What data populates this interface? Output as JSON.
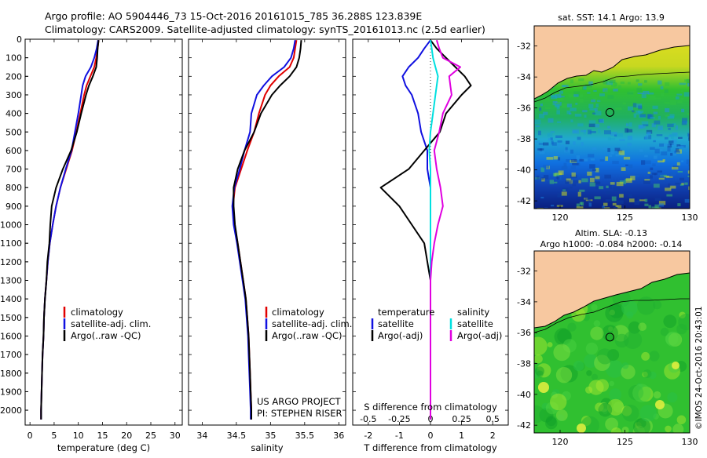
{
  "header": {
    "line1": "Argo profile: AO 5904446_73 15-Oct-2016 20161015_785 36.288S 123.839E",
    "line2": "Climatology: CARS2009. Satellite-adjusted climatology: synTS_20161013.nc (2.5d earlier)"
  },
  "colors": {
    "climatology": "#e00000",
    "satellite": "#1010e0",
    "argo": "#000000",
    "salinity_satellite": "#00e0e0",
    "salinity_argo": "#e000e0",
    "land": "#f7c8a0"
  },
  "chart_data": [
    {
      "type": "line",
      "name": "temperature-profile",
      "xlabel": "temperature (deg C)",
      "ylabel": "",
      "xlim": [
        -1,
        31.5
      ],
      "ylim": [
        2080,
        0
      ],
      "xticks": [
        "0",
        "5",
        "10",
        "15",
        "20",
        "25",
        "30"
      ],
      "yticks": [
        "0",
        "100",
        "200",
        "300",
        "400",
        "500",
        "600",
        "700",
        "800",
        "900",
        "1000",
        "1100",
        "1200",
        "1300",
        "1400",
        "1500",
        "1600",
        "1700",
        "1800",
        "1900",
        "2000"
      ],
      "depth": [
        5,
        50,
        100,
        150,
        200,
        250,
        300,
        400,
        500,
        600,
        700,
        800,
        900,
        1000,
        1100,
        1200,
        1300,
        1400,
        1500,
        1600,
        1700,
        1800,
        1900,
        2000,
        2050
      ],
      "series": [
        {
          "name": "climatology",
          "values": [
            14.2,
            14.0,
            13.7,
            13.3,
            12.5,
            11.7,
            11.2,
            10.4,
            9.6,
            8.7,
            7.5,
            6.3,
            5.4,
            4.7,
            4.1,
            3.7,
            3.4,
            3.1,
            2.9,
            2.8,
            2.6,
            2.5,
            2.4,
            2.3,
            2.3
          ]
        },
        {
          "name": "satellite-adj. clim.",
          "values": [
            14.1,
            13.8,
            13.3,
            12.6,
            11.5,
            10.9,
            10.6,
            10.0,
            9.3,
            8.6,
            7.4,
            6.3,
            5.4,
            4.7,
            4.1,
            3.7,
            3.4,
            3.1,
            2.9,
            2.8,
            2.6,
            2.5,
            2.4,
            2.3,
            2.3
          ]
        },
        {
          "name": "Argo(..raw -QC)",
          "values": [
            14.2,
            14.0,
            13.9,
            13.7,
            13.0,
            12.2,
            11.6,
            10.6,
            9.7,
            8.5,
            6.8,
            5.4,
            4.5,
            4.2,
            4.0,
            3.6,
            3.4,
            3.1,
            2.9,
            2.8,
            2.6,
            2.5,
            2.4,
            2.3,
            2.3
          ]
        }
      ],
      "legend": [
        "climatology",
        "satellite-adj. clim.",
        "Argo(..raw -QC)"
      ]
    },
    {
      "type": "line",
      "name": "salinity-profile",
      "xlabel": "salinity",
      "xlim": [
        33.8,
        36.1
      ],
      "ylim": [
        2080,
        0
      ],
      "xticks": [
        "34",
        "34.5",
        "35",
        "35.5",
        "36"
      ],
      "depth": [
        5,
        50,
        100,
        150,
        200,
        250,
        300,
        400,
        500,
        600,
        700,
        800,
        900,
        1000,
        1100,
        1200,
        1300,
        1400,
        1500,
        1600,
        1700,
        1800,
        1900,
        2000,
        2050
      ],
      "series": [
        {
          "name": "climatology",
          "values": [
            35.38,
            35.36,
            35.34,
            35.28,
            35.12,
            35.0,
            34.92,
            34.83,
            34.76,
            34.66,
            34.57,
            34.48,
            34.45,
            34.47,
            34.52,
            34.56,
            34.6,
            34.64,
            34.66,
            34.68,
            34.69,
            34.7,
            34.71,
            34.72,
            34.72
          ]
        },
        {
          "name": "satellite-adj. clim.",
          "values": [
            35.36,
            35.34,
            35.3,
            35.2,
            35.02,
            34.9,
            34.8,
            34.72,
            34.7,
            34.62,
            34.55,
            34.47,
            34.44,
            34.46,
            34.51,
            34.55,
            34.59,
            34.63,
            34.65,
            34.67,
            34.68,
            34.69,
            34.7,
            34.71,
            34.71
          ]
        },
        {
          "name": "Argo(..raw -QC)",
          "values": [
            35.45,
            35.44,
            35.42,
            35.38,
            35.28,
            35.14,
            35.02,
            34.86,
            34.76,
            34.62,
            34.52,
            34.46,
            34.46,
            34.48,
            34.52,
            34.56,
            34.6,
            34.64,
            34.66,
            34.68,
            34.69,
            34.7,
            34.71,
            34.72,
            34.72
          ]
        }
      ],
      "legend": [
        "climatology",
        "satellite-adj. clim.",
        "Argo(..raw -QC)"
      ],
      "annotation": [
        "US ARGO PROJECT",
        "PI: STEPHEN RISER"
      ]
    },
    {
      "type": "line",
      "name": "difference-profile",
      "xlabel": "T difference from climatology",
      "xlabel_top": "S difference from climatology",
      "xlim": [
        -2.5,
        2.5
      ],
      "ylim": [
        2080,
        0
      ],
      "xticks": [
        "-2",
        "-1",
        "0",
        "1",
        "2"
      ],
      "sticks": [
        "-0.5",
        "-0.25",
        "0",
        "0.25",
        "0.5"
      ],
      "depth": [
        5,
        50,
        100,
        150,
        200,
        250,
        300,
        400,
        500,
        600,
        700,
        800,
        900,
        1000,
        1100,
        1200,
        1300,
        1400,
        1500,
        1600,
        1700,
        1800,
        1900,
        2000,
        2050
      ],
      "series": [
        {
          "name": "temperature satellite",
          "values": [
            0.0,
            -0.2,
            -0.4,
            -0.7,
            -0.9,
            -0.8,
            -0.6,
            -0.4,
            -0.3,
            -0.1,
            -0.1,
            0.0,
            0.0,
            0.0,
            0.0,
            0.0,
            0.0,
            0.0,
            0.0,
            0.0,
            0.0,
            0.0,
            0.0,
            0.0,
            0.0
          ]
        },
        {
          "name": "temperature Argo(-adj)",
          "values": [
            0.0,
            0.2,
            0.5,
            0.8,
            1.1,
            1.3,
            1.0,
            0.5,
            0.3,
            -0.2,
            -0.7,
            -1.6,
            -1.0,
            -0.6,
            -0.2,
            -0.1,
            0.0,
            0.0,
            0.0,
            0.0,
            0.0,
            0.0,
            0.0,
            0.0,
            0.0
          ]
        },
        {
          "name": "salinity satellite",
          "values": [
            0.0,
            0.01,
            0.02,
            0.04,
            0.06,
            0.05,
            0.04,
            0.02,
            0.0,
            -0.01,
            0.0,
            0.0,
            0.0,
            0.0,
            0.0,
            0.0,
            0.0,
            0.0,
            0.0,
            0.0,
            0.0,
            0.0,
            0.0,
            0.0,
            0.0
          ]
        },
        {
          "name": "salinity Argo(-adj)",
          "values": [
            0.05,
            0.07,
            0.1,
            0.24,
            0.15,
            0.16,
            0.17,
            0.1,
            0.07,
            0.03,
            0.05,
            0.08,
            0.1,
            0.06,
            0.03,
            0.01,
            0.0,
            0.0,
            0.0,
            0.0,
            0.0,
            0.0,
            0.0,
            0.0,
            0.0
          ]
        }
      ],
      "legend": {
        "temperature_title": "temperature",
        "salinity_title": "salinity",
        "entries": [
          "satellite",
          "Argo(-adj)",
          "satellite",
          "Argo(-adj)"
        ]
      }
    },
    {
      "type": "heatmap",
      "name": "sst-map",
      "title": "sat. SST: 14.1  Argo: 13.9",
      "xlim": [
        118,
        130
      ],
      "ylim": [
        -42.5,
        -30.7
      ],
      "xticks": [
        "120",
        "125",
        "130"
      ],
      "yticks": [
        "-32",
        "-34",
        "-36",
        "-38",
        "-40",
        "-42"
      ],
      "marker": {
        "lon": 123.839,
        "lat": -36.288
      }
    },
    {
      "type": "heatmap",
      "name": "sla-map",
      "title_line1": "Altim. SLA: -0.13",
      "title_line2": "Argo h1000: -0.084  h2000: -0.14",
      "xlim": [
        118,
        130
      ],
      "ylim": [
        -42.5,
        -30.7
      ],
      "xticks": [
        "120",
        "125",
        "130"
      ],
      "yticks": [
        "-32",
        "-34",
        "-36",
        "-38",
        "-40",
        "-42"
      ],
      "marker": {
        "lon": 123.839,
        "lat": -36.288
      },
      "side_label": "©IMOS 24-Oct-2016 20:43:01"
    }
  ]
}
